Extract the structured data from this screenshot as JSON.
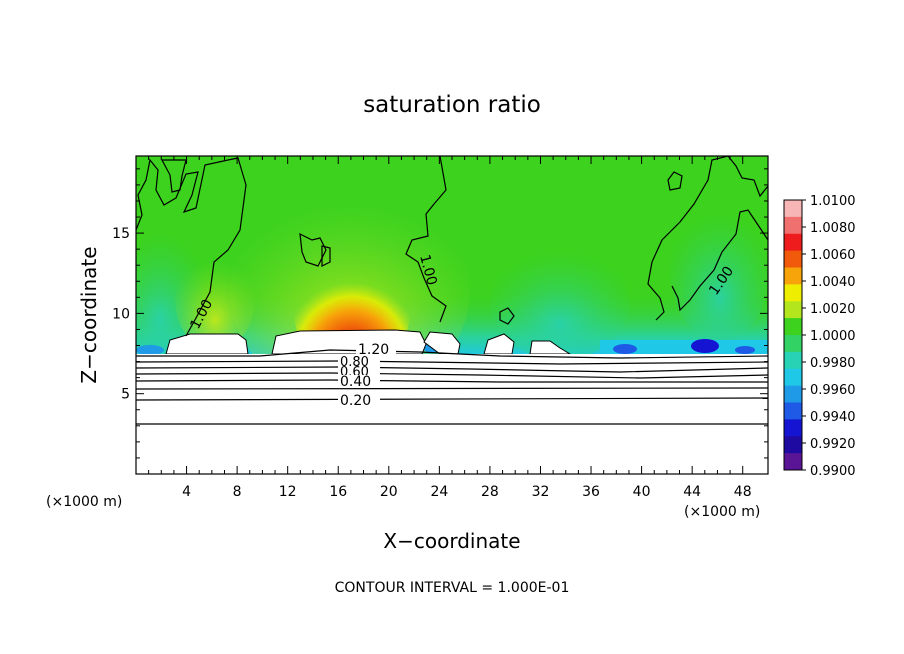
{
  "chart_data": {
    "type": "heatmap",
    "title": "saturation ratio",
    "xlabel": "X−coordinate",
    "ylabel": "Z−coordinate",
    "x_unit_left": "(×1000 m)",
    "x_unit_right": "(×1000 m)",
    "footnote": "CONTOUR INTERVAL = 1.000E-01",
    "xlim": [
      0,
      50
    ],
    "ylim": [
      0,
      19.8
    ],
    "x_ticks": [
      "4",
      "8",
      "12",
      "16",
      "20",
      "24",
      "28",
      "32",
      "36",
      "40",
      "44",
      "48"
    ],
    "y_ticks": [
      "5",
      "10",
      "15"
    ],
    "colorbar": {
      "labels": [
        "1.0100",
        "1.0080",
        "1.0060",
        "1.0040",
        "1.0020",
        "1.0000",
        "0.9980",
        "0.9960",
        "0.9940",
        "0.9920",
        "0.9900"
      ],
      "colors": [
        "#f7b5b5",
        "#f07070",
        "#ee1c1c",
        "#f05a0a",
        "#f7a30a",
        "#eeee00",
        "#b4e61e",
        "#3cd21e",
        "#32d264",
        "#28d2b4",
        "#1ec8e6",
        "#1e9ae6",
        "#1e5ae6",
        "#1414d2",
        "#1e0aa0",
        "#5a1496"
      ]
    },
    "contour_labels": [
      "1.00",
      "1.00",
      "1.00",
      "1.20",
      "0.80",
      "0.60",
      "0.40",
      "0.20"
    ],
    "contour_levels": [
      1.0,
      1.2,
      0.8,
      0.6,
      0.4,
      0.2
    ]
  }
}
